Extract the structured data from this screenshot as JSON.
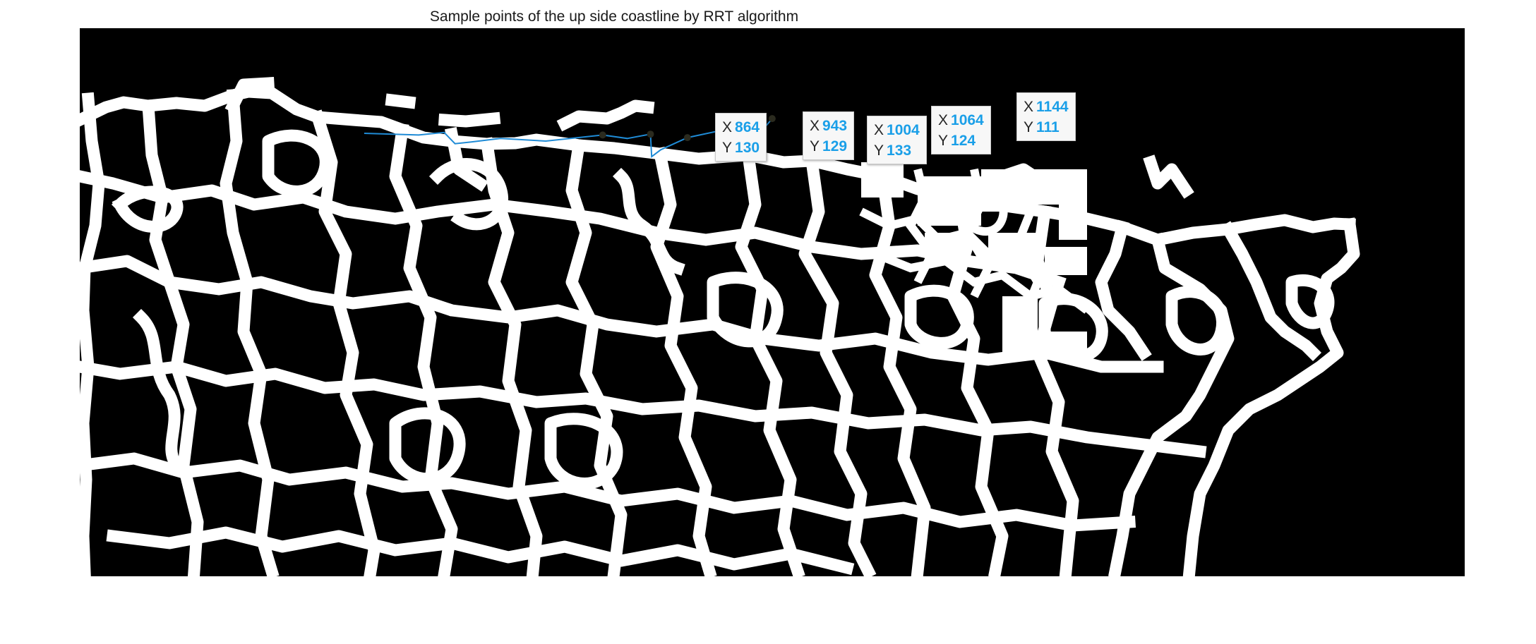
{
  "figure": {
    "title": "Sample points of the up side coastline by RRT algorithm"
  },
  "colors": {
    "background": "#000000",
    "roads": "#ffffff",
    "path": "#1f8bd6",
    "marker": "#2b2b1f",
    "tip_value": "#1a9fe8"
  },
  "datatips": [
    {
      "x_label": "X",
      "x_value": "864",
      "y_label": "Y",
      "y_value": "130"
    },
    {
      "x_label": "X",
      "x_value": "943",
      "y_label": "Y",
      "y_value": "129"
    },
    {
      "x_label": "X",
      "x_value": "1004",
      "y_label": "Y",
      "y_value": "133"
    },
    {
      "x_label": "X",
      "x_value": "1064",
      "y_label": "Y",
      "y_value": "124"
    },
    {
      "x_label": "X",
      "x_value": "1144",
      "y_label": "Y",
      "y_value": "111"
    }
  ],
  "path_points": [
    [
      470,
      128
    ],
    [
      560,
      130
    ],
    [
      602,
      127
    ],
    [
      620,
      140
    ],
    [
      647,
      138
    ],
    [
      695,
      134
    ],
    [
      770,
      137
    ],
    [
      864,
      130
    ],
    [
      905,
      134
    ],
    [
      943,
      129
    ],
    [
      945,
      155
    ],
    [
      960,
      147
    ],
    [
      1004,
      133
    ],
    [
      1064,
      124
    ],
    [
      1080,
      140
    ],
    [
      1097,
      150
    ],
    [
      1144,
      111
    ]
  ],
  "sample_points": [
    [
      864,
      130
    ],
    [
      943,
      129
    ],
    [
      1004,
      133
    ],
    [
      1064,
      124
    ],
    [
      1144,
      111
    ]
  ]
}
